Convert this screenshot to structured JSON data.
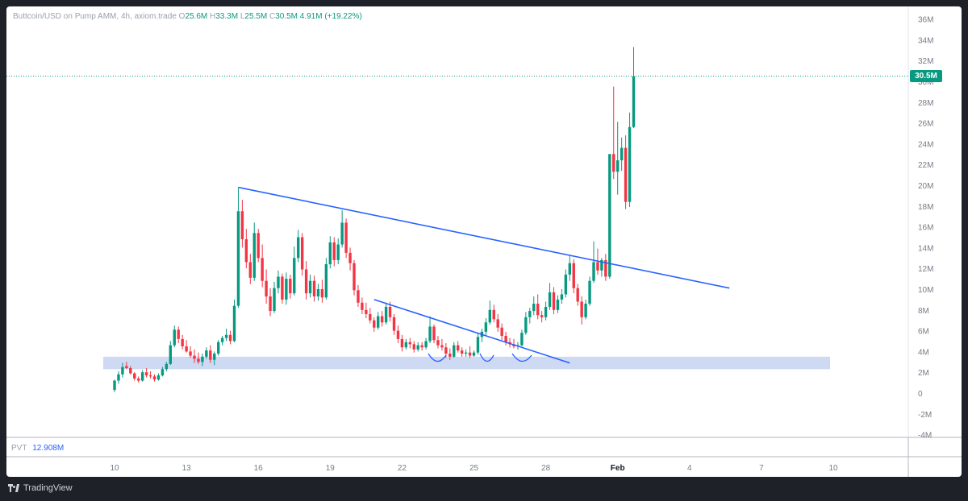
{
  "header": {
    "symbol": "Buttcoin/USD on Pump AMM, 4h, axiom.trade",
    "o_label": "O",
    "o_value": "25.6M",
    "h_label": "H",
    "h_value": "33.3M",
    "l_label": "L",
    "l_value": "25.5M",
    "c_label": "C",
    "c_value": "30.5M",
    "change": "4.91M (+19.22%)"
  },
  "price_tag": "30.5M",
  "indicator": {
    "label": "PVT",
    "value": "12.908M"
  },
  "brand": "TradingView",
  "colors": {
    "up": "#089981",
    "down": "#f23645",
    "trendline": "#2962ff",
    "zone": "#c5d2f2",
    "grid": "#f0f3fa",
    "text": "#131722",
    "muted": "#9aa0ac"
  },
  "chart_data": {
    "type": "candlestick",
    "timeframe": "4h",
    "y_axis": {
      "ticks": [
        "36M",
        "34M",
        "32M",
        "30M",
        "28M",
        "26M",
        "24M",
        "22M",
        "20M",
        "18M",
        "16M",
        "14M",
        "12M",
        "10M",
        "8M",
        "6M",
        "4M",
        "2M",
        "0",
        "-2M",
        "-4M"
      ],
      "ylim_millions": [
        -4,
        36
      ]
    },
    "x_axis": {
      "ticks": [
        "10",
        "13",
        "16",
        "19",
        "22",
        "25",
        "28",
        "Feb",
        "4",
        "7",
        "10"
      ],
      "tick_positions_candles": [
        0,
        18,
        36,
        54,
        72,
        90,
        108,
        126,
        144,
        162,
        180
      ]
    },
    "last_price_millions": 30.5,
    "candles_ohlc_millions": [
      [
        0.3,
        1.3,
        0.1,
        1.2
      ],
      [
        1.2,
        2.1,
        0.9,
        1.8
      ],
      [
        1.8,
        2.9,
        1.5,
        2.5
      ],
      [
        2.6,
        3.0,
        2.3,
        2.4
      ],
      [
        2.4,
        2.6,
        1.8,
        1.9
      ],
      [
        1.9,
        2.0,
        1.2,
        1.4
      ],
      [
        1.4,
        1.6,
        1.0,
        1.2
      ],
      [
        1.2,
        2.2,
        1.1,
        2.0
      ],
      [
        2.0,
        2.4,
        1.5,
        1.7
      ],
      [
        1.7,
        2.1,
        1.4,
        1.6
      ],
      [
        1.6,
        1.8,
        1.1,
        1.3
      ],
      [
        1.3,
        1.9,
        1.2,
        1.7
      ],
      [
        1.7,
        2.5,
        1.6,
        2.3
      ],
      [
        2.3,
        3.0,
        2.1,
        2.8
      ],
      [
        2.8,
        5.0,
        2.7,
        4.6
      ],
      [
        4.6,
        6.5,
        4.4,
        6.1
      ],
      [
        6.1,
        6.4,
        4.8,
        5.2
      ],
      [
        5.2,
        5.6,
        4.2,
        4.5
      ],
      [
        4.5,
        5.1,
        3.9,
        4.0
      ],
      [
        4.0,
        4.5,
        3.4,
        3.6
      ],
      [
        3.6,
        4.2,
        2.9,
        3.3
      ],
      [
        3.3,
        3.9,
        2.8,
        3.0
      ],
      [
        3.0,
        3.8,
        2.6,
        3.5
      ],
      [
        3.5,
        4.4,
        3.3,
        4.1
      ],
      [
        4.1,
        4.6,
        2.9,
        3.2
      ],
      [
        3.2,
        4.0,
        2.7,
        3.8
      ],
      [
        3.8,
        5.1,
        3.6,
        4.9
      ],
      [
        4.9,
        5.5,
        4.6,
        5.3
      ],
      [
        5.3,
        6.2,
        5.0,
        5.6
      ],
      [
        5.6,
        6.0,
        4.7,
        5.0
      ],
      [
        5.0,
        9.0,
        4.9,
        8.4
      ],
      [
        8.4,
        19.8,
        8.2,
        17.5
      ],
      [
        17.5,
        18.6,
        14.0,
        14.8
      ],
      [
        14.8,
        15.8,
        12.0,
        12.6
      ],
      [
        12.6,
        13.4,
        10.5,
        11.1
      ],
      [
        11.1,
        16.4,
        10.8,
        15.4
      ],
      [
        15.4,
        15.8,
        12.6,
        13.0
      ],
      [
        13.0,
        14.3,
        10.2,
        10.8
      ],
      [
        10.8,
        11.9,
        8.6,
        9.3
      ],
      [
        9.3,
        10.1,
        7.4,
        7.9
      ],
      [
        7.9,
        10.7,
        7.7,
        10.1
      ],
      [
        10.1,
        11.8,
        9.6,
        11.2
      ],
      [
        11.2,
        11.5,
        8.6,
        9.0
      ],
      [
        9.0,
        11.6,
        8.5,
        11.0
      ],
      [
        11.0,
        11.4,
        9.1,
        9.6
      ],
      [
        9.6,
        14.1,
        9.4,
        13.0
      ],
      [
        13.0,
        15.7,
        12.6,
        15.0
      ],
      [
        15.0,
        15.4,
        11.3,
        11.9
      ],
      [
        11.9,
        12.7,
        9.0,
        9.6
      ],
      [
        9.6,
        11.4,
        9.2,
        10.8
      ],
      [
        10.8,
        11.3,
        8.8,
        9.3
      ],
      [
        9.3,
        10.5,
        8.9,
        10.0
      ],
      [
        10.0,
        10.9,
        8.7,
        9.2
      ],
      [
        9.2,
        13.0,
        9.0,
        12.4
      ],
      [
        12.4,
        15.1,
        12.0,
        14.5
      ],
      [
        14.5,
        15.0,
        12.2,
        12.8
      ],
      [
        12.8,
        14.9,
        12.4,
        14.3
      ],
      [
        14.3,
        17.6,
        14.0,
        16.4
      ],
      [
        16.4,
        16.8,
        13.0,
        13.5
      ],
      [
        13.5,
        14.0,
        11.8,
        12.5
      ],
      [
        12.5,
        12.8,
        9.4,
        9.9
      ],
      [
        9.9,
        10.4,
        8.3,
        8.7
      ],
      [
        8.7,
        9.2,
        7.6,
        8.0
      ],
      [
        8.0,
        8.7,
        7.2,
        7.6
      ],
      [
        7.6,
        8.2,
        6.7,
        7.0
      ],
      [
        7.0,
        7.3,
        5.9,
        6.3
      ],
      [
        6.3,
        7.8,
        6.1,
        7.4
      ],
      [
        7.4,
        7.9,
        6.4,
        6.8
      ],
      [
        6.8,
        8.7,
        6.6,
        8.3
      ],
      [
        8.3,
        8.8,
        6.9,
        7.3
      ],
      [
        7.3,
        7.6,
        5.6,
        6.0
      ],
      [
        6.0,
        6.5,
        4.8,
        5.2
      ],
      [
        5.2,
        5.6,
        4.0,
        4.4
      ],
      [
        4.4,
        5.2,
        4.2,
        4.9
      ],
      [
        4.9,
        5.3,
        4.3,
        4.7
      ],
      [
        4.7,
        5.0,
        3.9,
        4.2
      ],
      [
        4.2,
        4.9,
        4.0,
        4.6
      ],
      [
        4.6,
        4.9,
        4.1,
        4.4
      ],
      [
        4.4,
        5.3,
        4.2,
        5.0
      ],
      [
        5.0,
        7.4,
        4.8,
        6.4
      ],
      [
        6.4,
        6.6,
        4.8,
        5.1
      ],
      [
        5.1,
        5.5,
        4.3,
        4.6
      ],
      [
        4.6,
        5.2,
        4.1,
        4.4
      ],
      [
        4.4,
        4.8,
        3.4,
        3.8
      ],
      [
        3.8,
        4.3,
        3.2,
        3.5
      ],
      [
        3.5,
        4.9,
        3.4,
        4.6
      ],
      [
        4.6,
        5.0,
        3.9,
        4.1
      ],
      [
        4.1,
        4.4,
        3.5,
        3.8
      ],
      [
        3.8,
        4.2,
        3.5,
        3.9
      ],
      [
        3.9,
        4.5,
        3.4,
        3.6
      ],
      [
        3.6,
        4.1,
        3.5,
        3.9
      ],
      [
        3.9,
        5.8,
        3.7,
        5.4
      ],
      [
        5.4,
        6.2,
        4.9,
        5.9
      ],
      [
        5.9,
        7.2,
        5.5,
        6.8
      ],
      [
        6.8,
        8.9,
        6.6,
        8.0
      ],
      [
        8.0,
        8.5,
        6.8,
        7.1
      ],
      [
        7.1,
        7.6,
        5.9,
        6.3
      ],
      [
        6.3,
        6.7,
        5.1,
        5.5
      ],
      [
        5.5,
        5.9,
        4.6,
        4.9
      ],
      [
        4.9,
        5.3,
        4.4,
        4.7
      ],
      [
        4.7,
        5.2,
        4.3,
        4.5
      ],
      [
        4.5,
        4.9,
        4.2,
        4.6
      ],
      [
        4.6,
        6.1,
        4.5,
        5.8
      ],
      [
        5.8,
        7.8,
        5.6,
        7.3
      ],
      [
        7.3,
        8.2,
        6.7,
        7.9
      ],
      [
        7.9,
        9.3,
        7.5,
        8.6
      ],
      [
        8.6,
        9.5,
        7.1,
        7.5
      ],
      [
        7.5,
        7.9,
        6.8,
        7.3
      ],
      [
        7.3,
        8.8,
        7.0,
        8.3
      ],
      [
        8.3,
        10.6,
        8.0,
        9.7
      ],
      [
        9.7,
        10.2,
        7.6,
        8.0
      ],
      [
        8.0,
        9.4,
        7.7,
        9.0
      ],
      [
        9.0,
        10.0,
        8.6,
        9.5
      ],
      [
        9.5,
        11.9,
        9.2,
        11.4
      ],
      [
        11.4,
        13.2,
        10.8,
        12.5
      ],
      [
        12.5,
        12.9,
        9.6,
        10.1
      ],
      [
        10.1,
        10.5,
        8.4,
        8.8
      ],
      [
        8.8,
        9.3,
        6.6,
        7.3
      ],
      [
        7.3,
        9.0,
        7.1,
        8.6
      ],
      [
        8.6,
        11.2,
        8.4,
        10.8
      ],
      [
        10.8,
        14.6,
        10.6,
        12.6
      ],
      [
        12.6,
        13.9,
        11.4,
        11.8
      ],
      [
        11.8,
        13.0,
        11.2,
        12.8
      ],
      [
        12.8,
        13.4,
        10.8,
        11.2
      ],
      [
        11.2,
        23.0,
        11.0,
        23.0
      ],
      [
        23.0,
        29.5,
        20.6,
        21.3
      ],
      [
        21.3,
        26.1,
        19.1,
        22.4
      ],
      [
        22.4,
        24.6,
        21.4,
        23.6
      ],
      [
        23.6,
        24.8,
        17.7,
        18.4
      ],
      [
        18.4,
        27.0,
        17.9,
        25.6
      ],
      [
        25.6,
        33.3,
        25.5,
        30.5
      ]
    ],
    "trendlines_data_units": [
      {
        "from": [
          31,
          19.8
        ],
        "to": [
          154,
          10.1
        ]
      },
      {
        "from": [
          65,
          9.0
        ],
        "to": [
          114,
          2.9
        ]
      }
    ],
    "support_zone_millions": [
      2.3,
      3.5
    ],
    "annotations": [
      "three small bottom arcs drawn near 3M around the dip lows"
    ]
  }
}
